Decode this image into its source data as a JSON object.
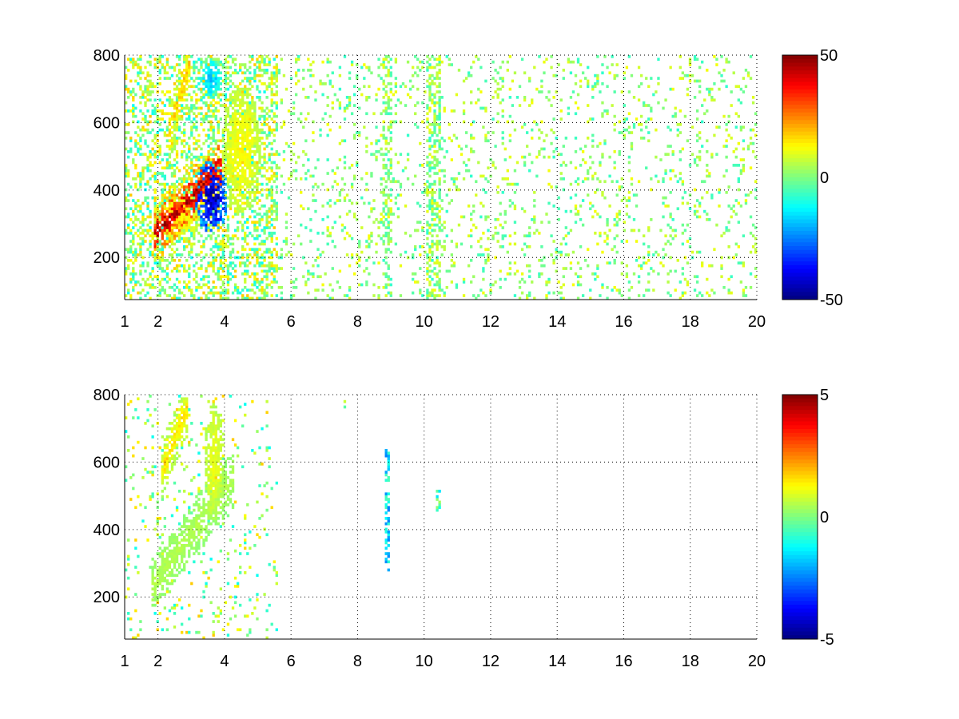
{
  "chart_data": [
    {
      "type": "heatmap",
      "title": "",
      "xlabel": "",
      "ylabel": "",
      "xlim": [
        1,
        20
      ],
      "ylim": [
        75,
        800
      ],
      "x_ticks": [
        1,
        2,
        4,
        6,
        8,
        10,
        12,
        14,
        16,
        18,
        20
      ],
      "x_tick_labels": [
        "1",
        "2",
        "4",
        "6",
        "8",
        "10",
        "12",
        "14",
        "16",
        "18",
        "20"
      ],
      "y_ticks": [
        200,
        400,
        600,
        800
      ],
      "y_tick_labels": [
        "200",
        "400",
        "600",
        "800"
      ],
      "grid": true,
      "grid_style": "dotted",
      "colormap": "jet",
      "colorbar": {
        "range": [
          -50,
          50
        ],
        "ticks": [
          50,
          0,
          -50
        ],
        "tick_labels": [
          "50",
          "0",
          "-50"
        ]
      },
      "features": [
        {
          "kind": "band",
          "x_from": 1.9,
          "x_to": 3.9,
          "y_from": 270,
          "y_to": 470,
          "value": 42
        },
        {
          "kind": "band",
          "x_from": 2.3,
          "x_to": 3.0,
          "y_from": 560,
          "y_to": 790,
          "value": 18
        },
        {
          "kind": "blob",
          "x": 3.6,
          "y": 380,
          "rx": 0.5,
          "ry": 110,
          "value": -45
        },
        {
          "kind": "blob",
          "x": 2.6,
          "y": 320,
          "rx": 0.7,
          "ry": 70,
          "value": 15
        },
        {
          "kind": "blob",
          "x": 3.6,
          "y": 730,
          "rx": 0.3,
          "ry": 60,
          "value": -18
        },
        {
          "kind": "blob",
          "x": 4.5,
          "y": 520,
          "rx": 0.6,
          "ry": 200,
          "value": 12
        }
      ],
      "scatter_region": {
        "x_from": 5.0,
        "x_to": 20,
        "value_range": [
          -8,
          12
        ],
        "density": 0.1
      },
      "strong_columns": [
        8.9,
        10.2,
        10.4
      ]
    },
    {
      "type": "heatmap",
      "title": "",
      "xlabel": "",
      "ylabel": "",
      "xlim": [
        1,
        20
      ],
      "ylim": [
        75,
        800
      ],
      "x_ticks": [
        1,
        2,
        4,
        6,
        8,
        10,
        12,
        14,
        16,
        18,
        20
      ],
      "x_tick_labels": [
        "1",
        "2",
        "4",
        "6",
        "8",
        "10",
        "12",
        "14",
        "16",
        "18",
        "20"
      ],
      "y_ticks": [
        200,
        400,
        600,
        800
      ],
      "y_tick_labels": [
        "200",
        "400",
        "600",
        "800"
      ],
      "grid": true,
      "grid_style": "dotted",
      "colormap": "jet",
      "colorbar": {
        "range": [
          -5,
          5
        ],
        "ticks": [
          5,
          0,
          -5
        ],
        "tick_labels": [
          "5",
          "0",
          "-5"
        ]
      },
      "features": [
        {
          "kind": "band",
          "x_from": 1.8,
          "x_to": 4.3,
          "y_from": 230,
          "y_to": 560,
          "value": 0.5
        },
        {
          "kind": "band",
          "x_from": 2.1,
          "x_to": 2.9,
          "y_from": 570,
          "y_to": 770,
          "value": 1.5
        },
        {
          "kind": "blob",
          "x": 3.7,
          "y": 600,
          "rx": 0.3,
          "ry": 180,
          "value": 1.0
        }
      ],
      "sparse_points": [
        {
          "x": 8.9,
          "y_from": 280,
          "y_to": 640,
          "value": -1.5
        },
        {
          "x": 10.4,
          "y_from": 450,
          "y_to": 530,
          "value": -0.5
        },
        {
          "x": 7.6,
          "y_from": 755,
          "y_to": 780,
          "value": 0.3
        }
      ]
    }
  ]
}
